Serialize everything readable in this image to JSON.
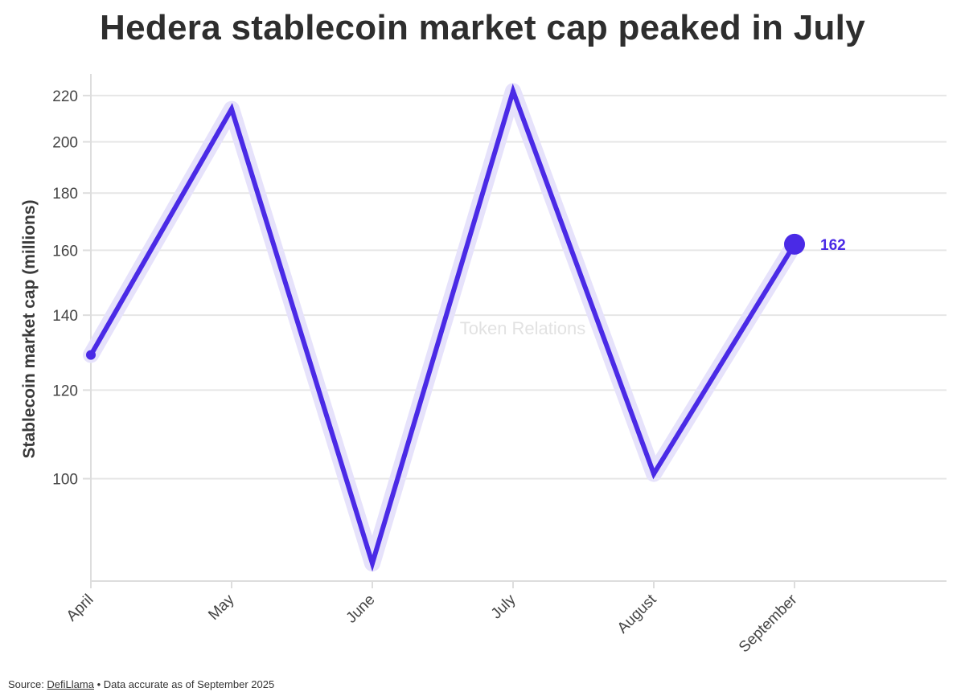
{
  "title": "Hedera stablecoin market cap peaked in July",
  "source": {
    "prefix": "Source: ",
    "link_text": "DefiLlama",
    "suffix": " • Data accurate as of September 2025"
  },
  "watermark": "Token Relations",
  "colors": {
    "line": "#4a2ae6",
    "glow": "#e6e2fb",
    "grid": "#e6e6e6",
    "axis": "#dddddd"
  },
  "chart_data": {
    "type": "line",
    "title": "Hedera stablecoin market cap peaked in July",
    "xlabel": "",
    "ylabel": "Stablecoin market cap (millions)",
    "y_scale": "log",
    "categories": [
      "April",
      "May",
      "June",
      "July",
      "August",
      "September"
    ],
    "series": [
      {
        "name": "Stablecoin market cap",
        "values": [
          129,
          214,
          84,
          222,
          101,
          162
        ]
      }
    ],
    "yticks": [
      100,
      120,
      140,
      160,
      180,
      200,
      220
    ],
    "ylim": [
      81,
      230
    ],
    "end_label": "162",
    "grid": true
  }
}
